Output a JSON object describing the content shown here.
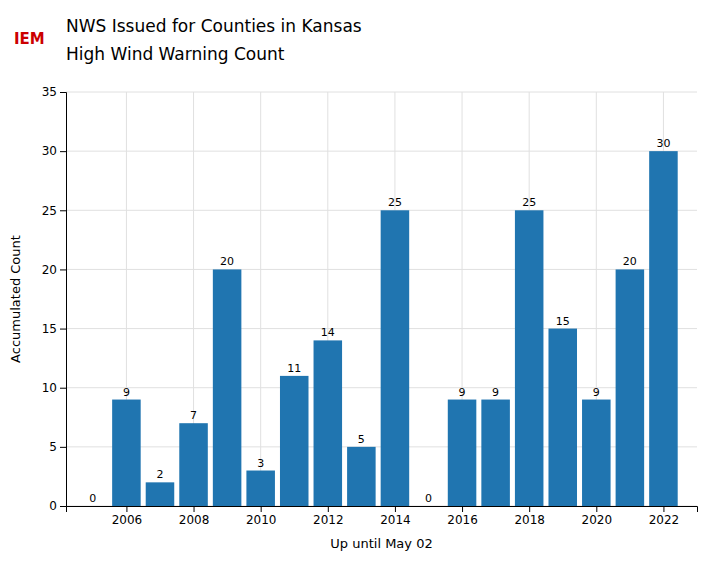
{
  "chart_data": {
    "type": "bar",
    "title": "NWS Issued for Counties in Kansas",
    "subtitle": "High Wind Warning Count",
    "annotations": [
      "IEM"
    ],
    "x_label": "Up until May 02",
    "y_label": "Accumulated Count",
    "x": [
      2005,
      2006,
      2007,
      2008,
      2009,
      2010,
      2011,
      2012,
      2013,
      2014,
      2015,
      2016,
      2017,
      2018,
      2019,
      2020,
      2021,
      2022
    ],
    "values": [
      0,
      9,
      2,
      7,
      20,
      3,
      11,
      14,
      5,
      25,
      0,
      9,
      9,
      25,
      15,
      9,
      20,
      30
    ],
    "color": "#2075b0",
    "xlim": [
      2004.2,
      2023.0
    ],
    "xticks": [
      2006,
      2008,
      2010,
      2012,
      2014,
      2016,
      2018,
      2020,
      2022
    ],
    "ylim": [
      0,
      35
    ],
    "yticks": [
      0,
      5,
      10,
      15,
      20,
      25,
      30,
      35
    ],
    "grid": true,
    "data_labels": true
  }
}
